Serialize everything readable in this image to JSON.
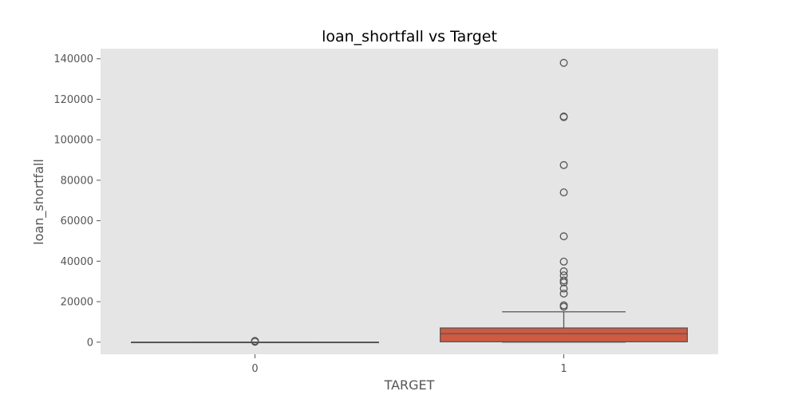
{
  "chart_data": {
    "type": "box",
    "title": "loan_shortfall vs Target",
    "xlabel": "TARGET",
    "ylabel": "loan_shortfall",
    "categories": [
      "0",
      "1"
    ],
    "ylim": [
      -6000,
      145000
    ],
    "yticks": [
      0,
      20000,
      40000,
      60000,
      80000,
      100000,
      120000,
      140000
    ],
    "ytick_labels": [
      "0",
      "20000",
      "40000",
      "60000",
      "80000",
      "100000",
      "120000",
      "140000"
    ],
    "grid": false,
    "boxes": [
      {
        "category": "0",
        "whisker_low": 0,
        "q1": 0,
        "median": 0,
        "q3": 0,
        "whisker_high": 0,
        "outliers": [
          200,
          400,
          600
        ]
      },
      {
        "category": "1",
        "whisker_low": 0,
        "q1": 200,
        "median": 4200,
        "q3": 7000,
        "whisker_high": 15000,
        "outliers": [
          17500,
          18200,
          24000,
          26500,
          29500,
          30500,
          33000,
          35000,
          39800,
          52300,
          74000,
          87500,
          111200,
          111500,
          138000
        ]
      }
    ],
    "colors": {
      "background": "#e5e5e5",
      "box_fill_1": "#cf5a42",
      "box_edge": "#555555"
    }
  }
}
